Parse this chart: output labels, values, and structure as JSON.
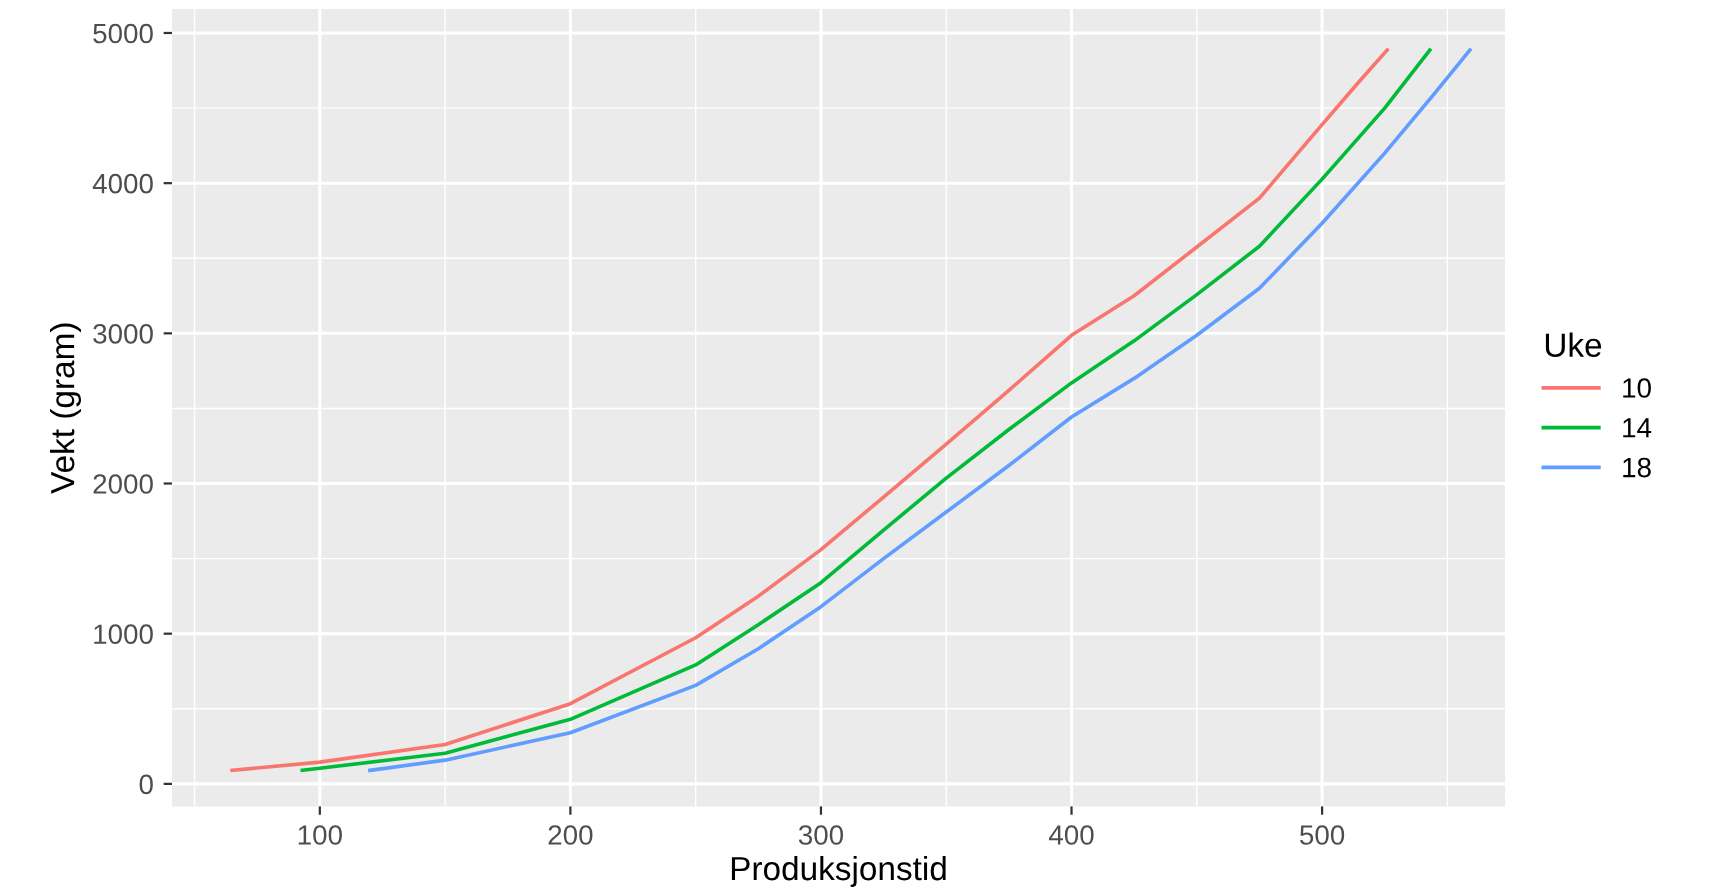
{
  "chart_data": {
    "type": "line",
    "xlabel": "Produksjonstid",
    "ylabel": "Vekt (gram)",
    "legend_title": "Uke",
    "legend": "right",
    "grid": true,
    "xlim": [
      41,
      573
    ],
    "ylim": [
      -150,
      5160
    ],
    "xticks": [
      100,
      200,
      300,
      400,
      500
    ],
    "yticks": [
      0,
      1000,
      2000,
      3000,
      4000,
      5000
    ],
    "series": [
      {
        "name": "10",
        "color": "#f8766d",
        "x": [
          65,
          100,
          150,
          200,
          250,
          275,
          300,
          325,
          350,
          375,
          400,
          425,
          450,
          475,
          500,
          515,
          526
        ],
        "values": [
          90,
          145,
          262,
          534,
          973,
          1250,
          1560,
          1910,
          2262,
          2620,
          2987,
          3250,
          3575,
          3900,
          4390,
          4680,
          4887
        ]
      },
      {
        "name": "14",
        "color": "#00ba38",
        "x": [
          93,
          100,
          150,
          200,
          250,
          275,
          300,
          325,
          350,
          375,
          400,
          425,
          450,
          475,
          500,
          525,
          543
        ],
        "values": [
          90,
          104,
          204,
          430,
          792,
          1060,
          1340,
          1690,
          2036,
          2360,
          2670,
          2950,
          3258,
          3580,
          4027,
          4500,
          4887
        ]
      },
      {
        "name": "18",
        "color": "#619cff",
        "x": [
          120,
          150,
          200,
          250,
          275,
          300,
          325,
          350,
          375,
          400,
          425,
          450,
          475,
          500,
          525,
          545,
          559
        ],
        "values": [
          90,
          158,
          340,
          656,
          900,
          1180,
          1500,
          1810,
          2120,
          2443,
          2700,
          2987,
          3300,
          3733,
          4200,
          4600,
          4887
        ]
      }
    ]
  }
}
